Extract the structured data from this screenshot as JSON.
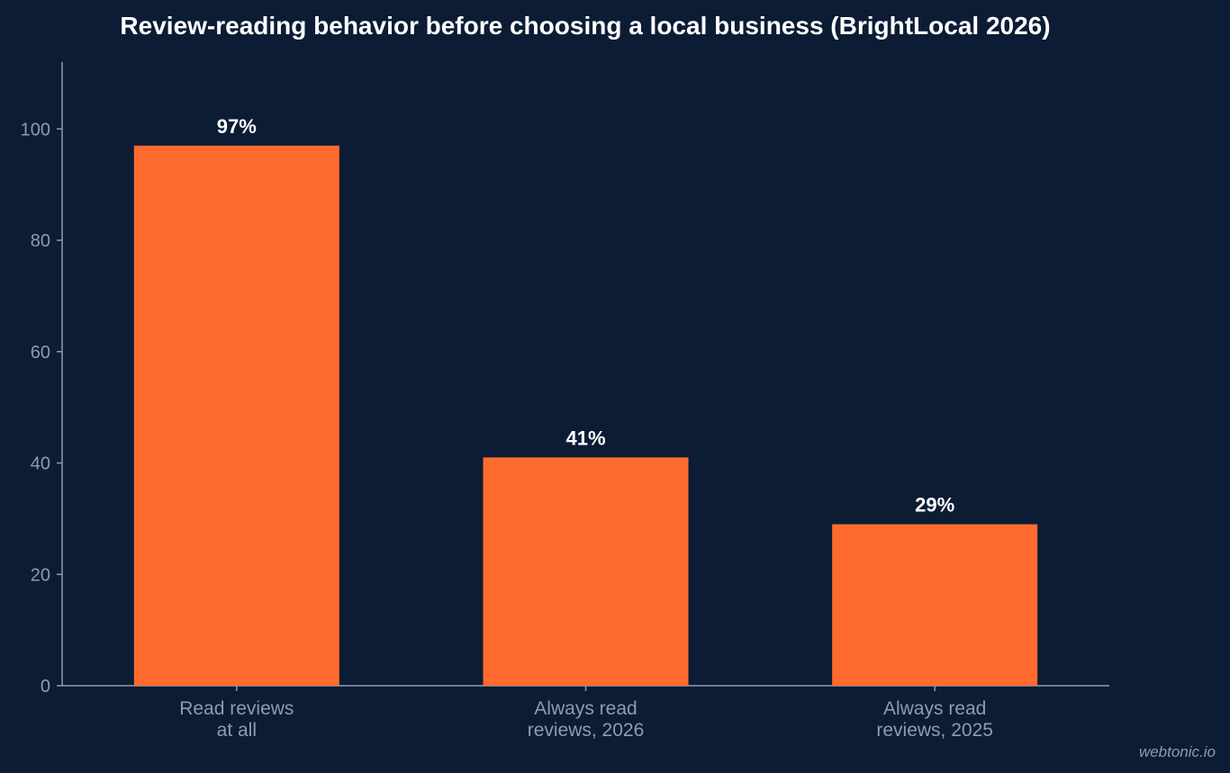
{
  "chart_data": {
    "type": "bar",
    "title": "Review-reading behavior before choosing a local business (BrightLocal 2026)",
    "xlabel": "",
    "ylabel": "",
    "categories": [
      [
        "Read reviews",
        "at all"
      ],
      [
        "Always read",
        "reviews, 2026"
      ],
      [
        "Always read",
        "reviews, 2025"
      ]
    ],
    "values": [
      97,
      41,
      29
    ],
    "data_labels": [
      "97%",
      "41%",
      "29%"
    ],
    "ylim": [
      0,
      112
    ],
    "yticks": [
      0,
      20,
      40,
      60,
      80,
      100
    ],
    "grid": false,
    "legend": "none",
    "colors": {
      "background": "#0c1c35",
      "bar": "#ff6b2e",
      "axis": "#8e9bb0",
      "text": "#ffffff",
      "tick_text": "#8e9bb0"
    }
  },
  "watermark": "webtonic.io"
}
